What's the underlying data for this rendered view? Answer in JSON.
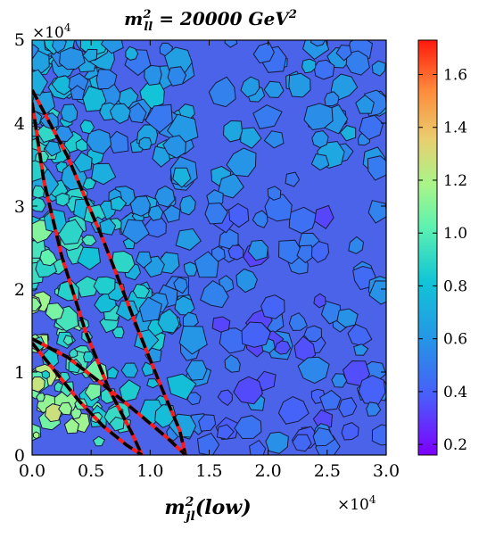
{
  "chart_data": {
    "type": "heatmap",
    "title": "m_{ll}^2 = 20000 GeV^2",
    "title_parts": {
      "m": "m",
      "sub": "ll",
      "sup": "2",
      "mid": " = 20000 ",
      "unit": "GeV",
      "unit_sup": "2"
    },
    "xlabel_parts": {
      "m": "m",
      "sub": "jl",
      "sup": "2",
      "rest": "(low)"
    },
    "x_ticks": [
      "0.0",
      "0.5",
      "1.0",
      "1.5",
      "2.0",
      "2.5",
      "3.0"
    ],
    "y_ticks": [
      "0",
      "1",
      "2",
      "3",
      "4",
      "5"
    ],
    "x_tick_values": [
      0,
      5000,
      10000,
      15000,
      20000,
      25000,
      30000
    ],
    "y_tick_values": [
      0,
      10000,
      20000,
      30000,
      40000,
      50000
    ],
    "xlim": [
      0,
      30000
    ],
    "ylim": [
      0,
      50000
    ],
    "x_multiplier": {
      "base": "×10",
      "exp": "4"
    },
    "y_multiplier": {
      "base": "×10",
      "exp": "4"
    },
    "colorbar": {
      "range": [
        0.16,
        1.73
      ],
      "ticks": [
        "0.2",
        "0.4",
        "0.6",
        "0.8",
        "1.0",
        "1.2",
        "1.4",
        "1.6"
      ],
      "tick_values": [
        0.2,
        0.4,
        0.6,
        0.8,
        1.0,
        1.2,
        1.4,
        1.6
      ],
      "colormap": "rainbow"
    },
    "curves": [
      {
        "style": "black-dashed-over-red",
        "points": [
          [
            0,
            44000
          ],
          [
            3000,
            36000
          ],
          [
            6000,
            26000
          ],
          [
            9000,
            15000
          ],
          [
            11000,
            8000
          ],
          [
            12500,
            3000
          ],
          [
            13000,
            0
          ]
        ]
      },
      {
        "style": "black-dashed-over-red",
        "points": [
          [
            0,
            42500
          ],
          [
            1000,
            33000
          ],
          [
            2500,
            24000
          ],
          [
            4500,
            15000
          ],
          [
            6500,
            8000
          ],
          [
            8500,
            2500
          ],
          [
            9300,
            0
          ]
        ]
      },
      {
        "style": "black-dashed-over-red",
        "points": [
          [
            0,
            14000
          ],
          [
            3000,
            11800
          ],
          [
            6000,
            8500
          ],
          [
            9000,
            5000
          ],
          [
            11500,
            2000
          ],
          [
            13000,
            0
          ]
        ]
      },
      {
        "style": "black-dashed-over-red",
        "points": [
          [
            0,
            13500
          ],
          [
            2000,
            10000
          ],
          [
            4000,
            6500
          ],
          [
            6000,
            3500
          ],
          [
            8000,
            1200
          ],
          [
            9300,
            0
          ]
        ]
      }
    ]
  }
}
